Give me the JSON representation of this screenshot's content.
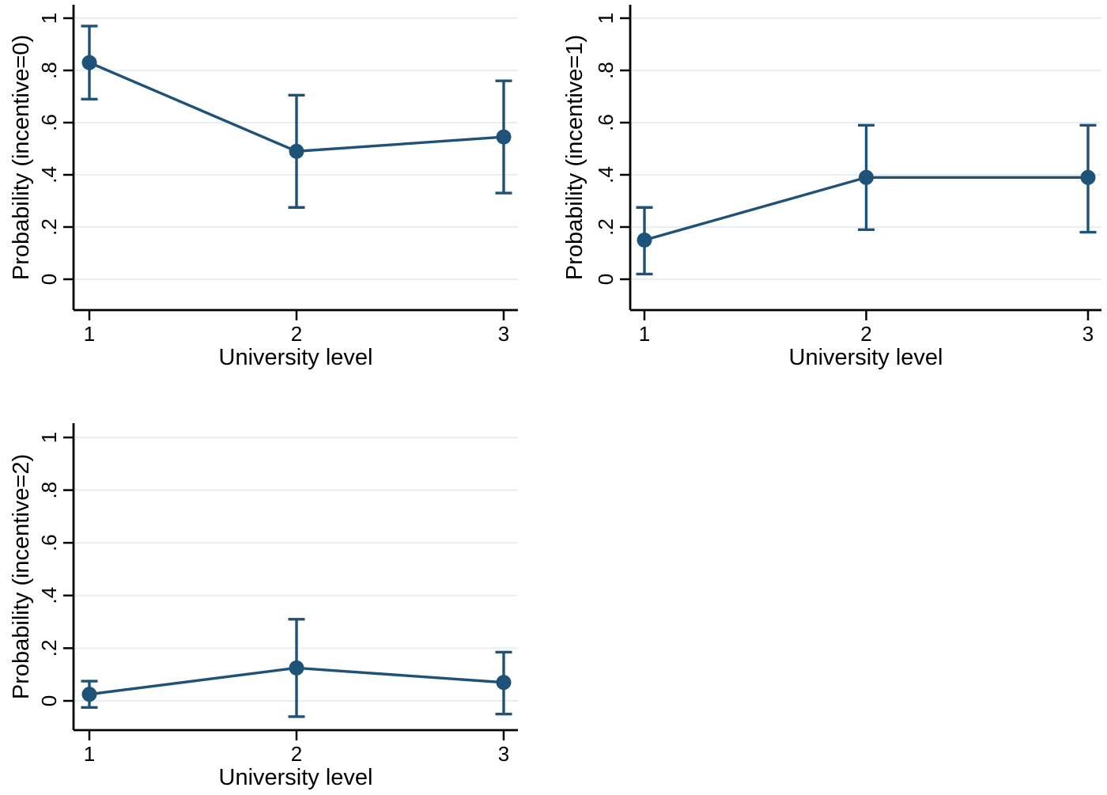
{
  "figure": {
    "description": "Three-panel figure of predicted probabilities by university level with 95% confidence intervals",
    "background": "#ffffff"
  },
  "colors": {
    "series": "#1f5278",
    "grid": "#e8eff3",
    "axis": "#000000",
    "text": "#000000"
  },
  "chart_data": [
    {
      "type": "line",
      "title": "",
      "xlabel": "University level",
      "ylabel": "Probability (incentive=0)",
      "x": [
        1,
        2,
        3
      ],
      "xtick_labels": [
        "1",
        "2",
        "3"
      ],
      "yticks": [
        0,
        0.2,
        0.4,
        0.6,
        0.8,
        1
      ],
      "ytick_labels": [
        "0",
        ".2",
        ".4",
        ".6",
        ".8",
        "1"
      ],
      "ylim": [
        -0.12,
        1.05
      ],
      "grid": true,
      "legend": "none",
      "series": [
        {
          "name": "Predicted probability (incentive=0)",
          "values": [
            0.83,
            0.49,
            0.545
          ],
          "ci_low": [
            0.69,
            0.275,
            0.33
          ],
          "ci_high": [
            0.97,
            0.705,
            0.76
          ]
        }
      ]
    },
    {
      "type": "line",
      "title": "",
      "xlabel": "University level",
      "ylabel": "Probability (incentive=1)",
      "x": [
        1,
        2,
        3
      ],
      "xtick_labels": [
        "1",
        "2",
        "3"
      ],
      "yticks": [
        0,
        0.2,
        0.4,
        0.6,
        0.8,
        1
      ],
      "ytick_labels": [
        "0",
        ".2",
        ".4",
        ".6",
        ".8",
        "1"
      ],
      "ylim": [
        -0.12,
        1.05
      ],
      "grid": true,
      "legend": "none",
      "series": [
        {
          "name": "Predicted probability (incentive=1)",
          "values": [
            0.15,
            0.39,
            0.39
          ],
          "ci_low": [
            0.02,
            0.19,
            0.18
          ],
          "ci_high": [
            0.275,
            0.59,
            0.59
          ]
        }
      ]
    },
    {
      "type": "line",
      "title": "",
      "xlabel": "University level",
      "ylabel": "Probability (incentive=2)",
      "x": [
        1,
        2,
        3
      ],
      "xtick_labels": [
        "1",
        "2",
        "3"
      ],
      "yticks": [
        0,
        0.2,
        0.4,
        0.6,
        0.8,
        1
      ],
      "ytick_labels": [
        "0",
        ".2",
        ".4",
        ".6",
        ".8",
        "1"
      ],
      "ylim": [
        -0.12,
        1.05
      ],
      "grid": true,
      "legend": "none",
      "series": [
        {
          "name": "Predicted probability (incentive=2)",
          "values": [
            0.025,
            0.125,
            0.07
          ],
          "ci_low": [
            -0.025,
            -0.06,
            -0.05
          ],
          "ci_high": [
            0.075,
            0.31,
            0.185
          ]
        }
      ]
    }
  ]
}
